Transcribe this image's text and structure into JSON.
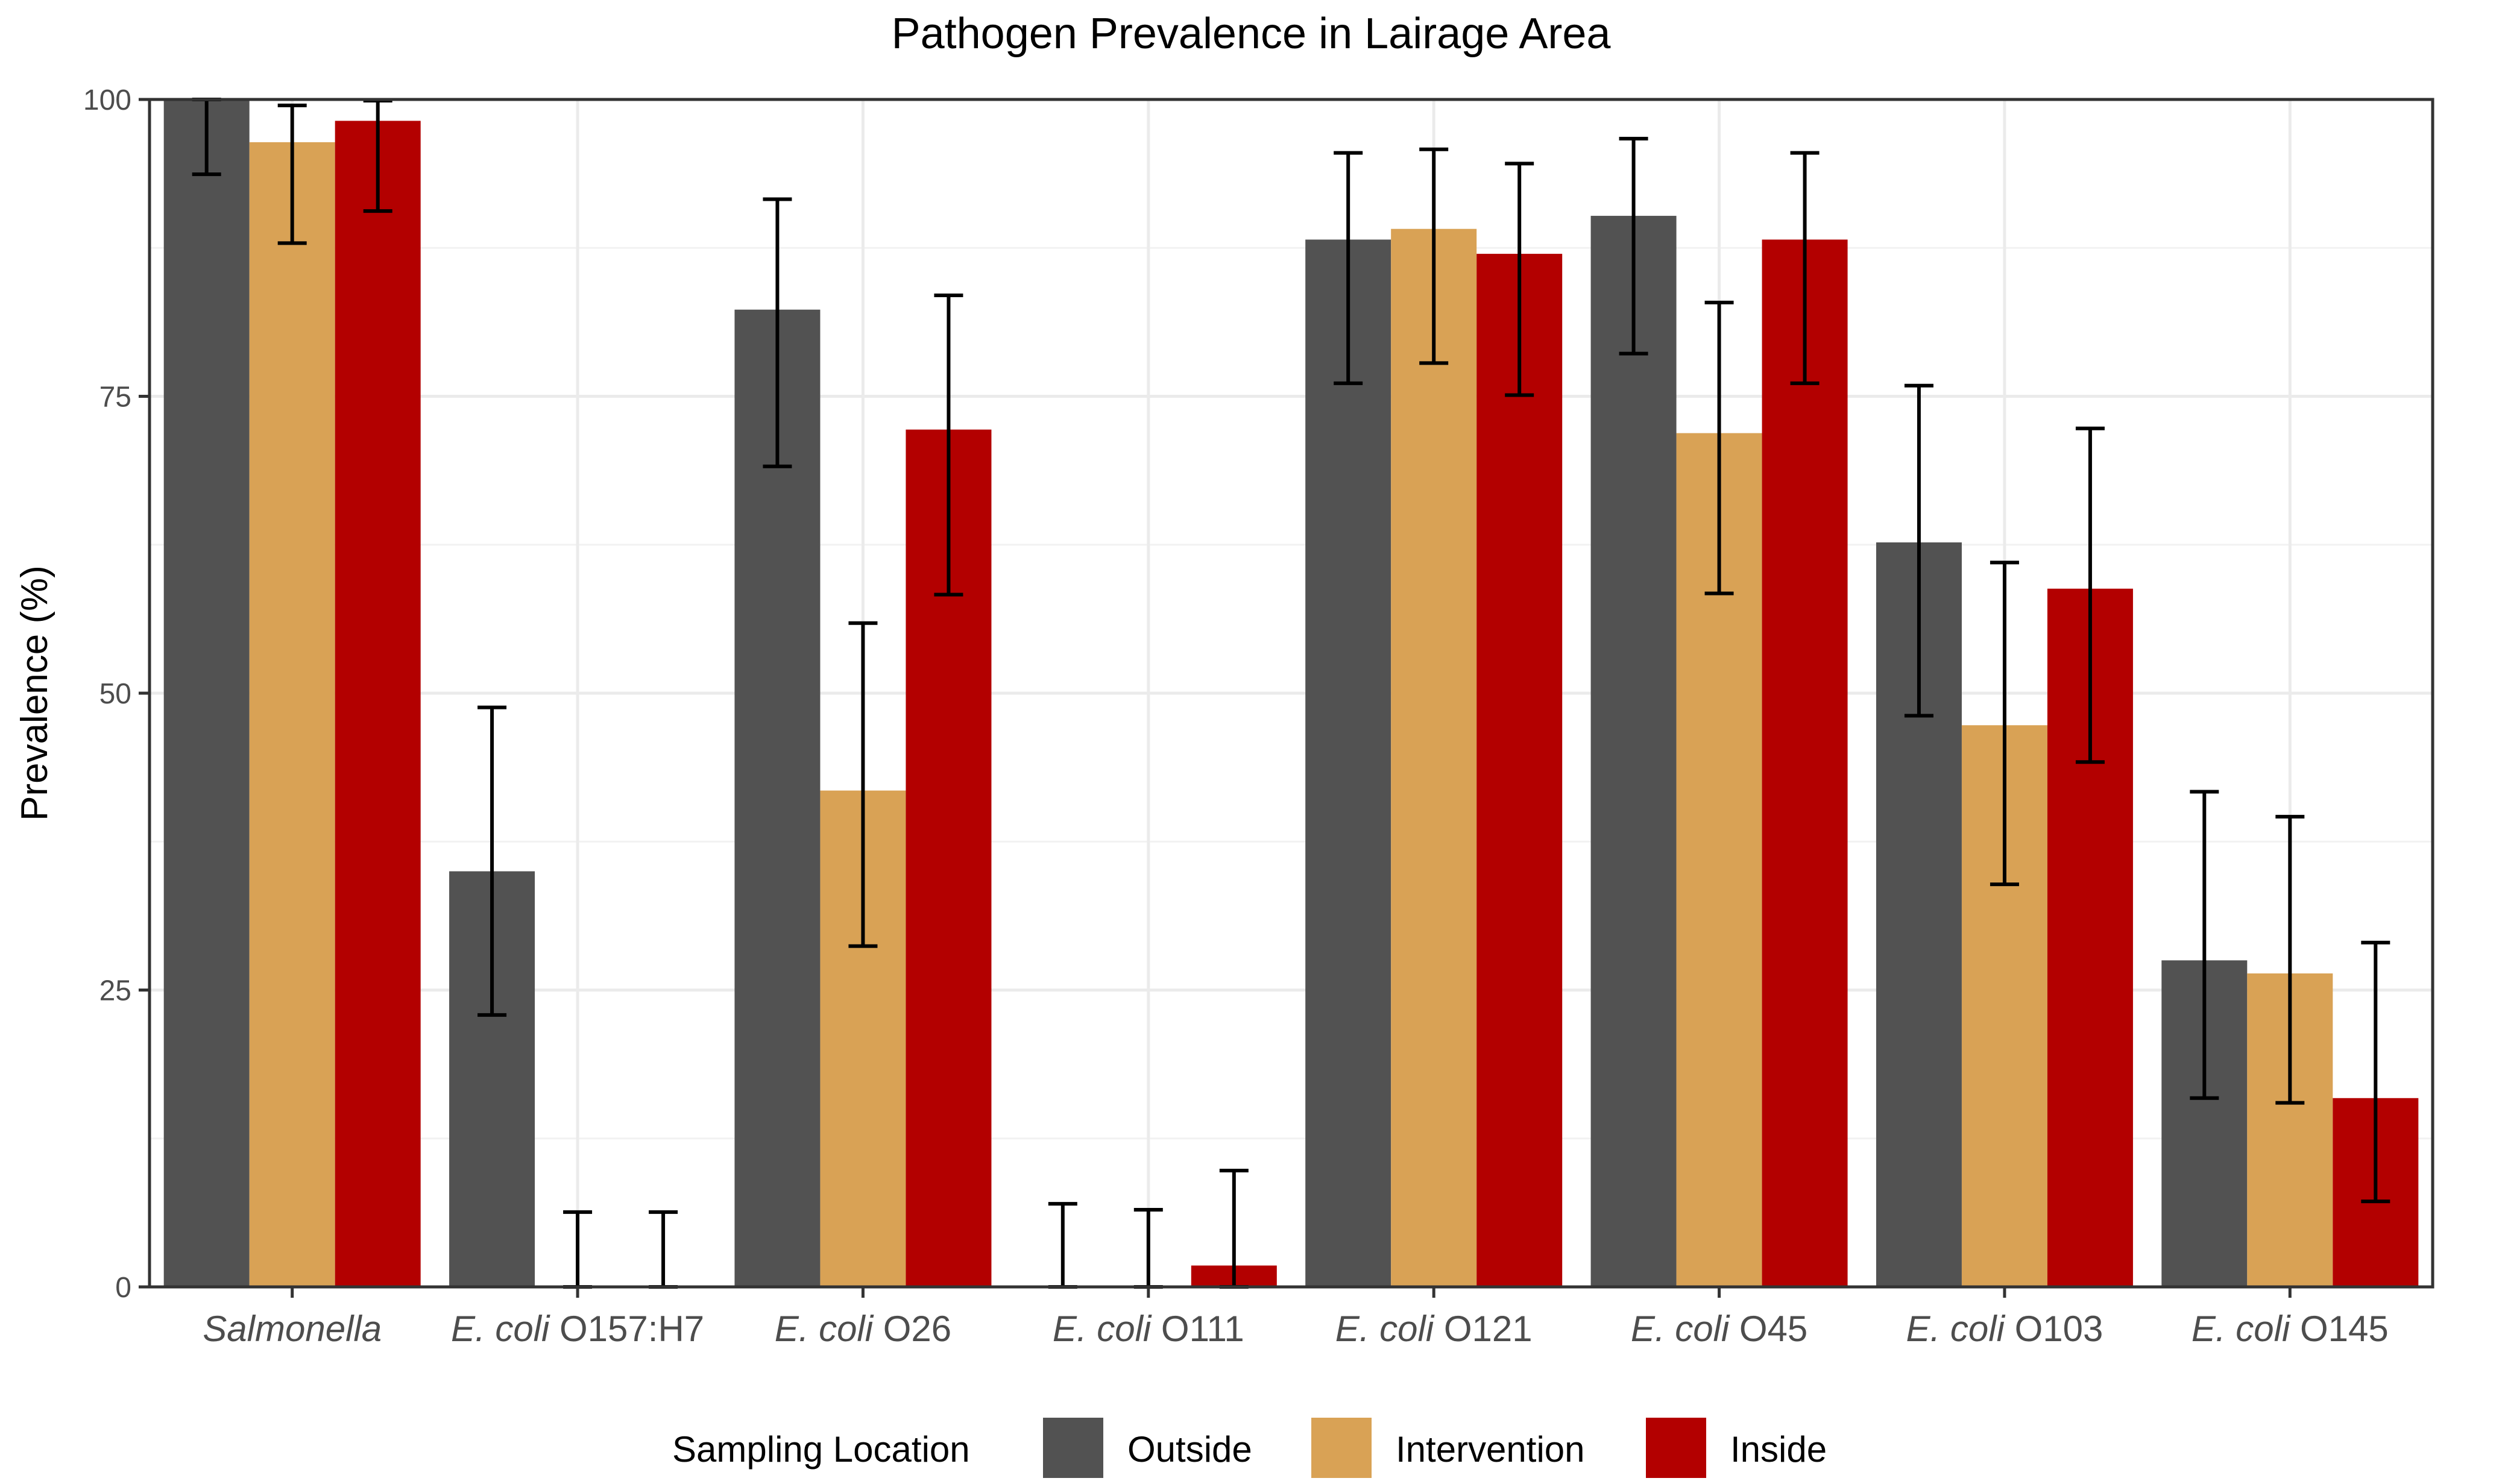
{
  "chart_data": {
    "type": "bar",
    "title": "Pathogen Prevalence in Lairage Area",
    "xlabel": "",
    "ylabel": "Prevalence (%)",
    "ylim": [
      0,
      100
    ],
    "yticks": [
      0,
      25,
      50,
      75,
      100
    ],
    "grid": true,
    "legend_position": "bottom",
    "legend_title": "Sampling Location",
    "categories": [
      {
        "italic": "Salmonella",
        "plain": ""
      },
      {
        "italic": "E. coli",
        "plain": " O157:H7"
      },
      {
        "italic": "E. coli",
        "plain": " O26"
      },
      {
        "italic": "E. coli",
        "plain": " O111"
      },
      {
        "italic": "E. coli",
        "plain": " O121"
      },
      {
        "italic": "E. coli",
        "plain": " O45"
      },
      {
        "italic": "E. coli",
        "plain": " O103"
      },
      {
        "italic": "E. coli",
        "plain": " O145"
      }
    ],
    "series": [
      {
        "name": "Outside",
        "color": "#525252",
        "values": [
          100,
          35,
          82.3,
          0,
          88.2,
          90.2,
          62.7,
          27.5
        ],
        "error_low": [
          93.7,
          22.9,
          69.1,
          0,
          76.1,
          78.6,
          48.1,
          15.9
        ],
        "error_high": [
          100,
          48.8,
          91.6,
          7.0,
          95.5,
          96.7,
          75.9,
          41.7
        ]
      },
      {
        "name": "Intervention",
        "color": "#d9a255",
        "values": [
          96.4,
          0,
          41.8,
          0,
          89.1,
          71.9,
          47.3,
          26.4
        ],
        "error_low": [
          87.9,
          0,
          28.7,
          0,
          77.8,
          58.4,
          33.9,
          15.5
        ],
        "error_high": [
          99.5,
          6.3,
          55.9,
          6.5,
          95.8,
          82.9,
          61.0,
          39.6
        ]
      },
      {
        "name": "Inside",
        "color": "#b30000",
        "values": [
          98.2,
          0,
          72.2,
          1.8,
          87.0,
          88.2,
          58.8,
          15.9
        ],
        "error_low": [
          90.6,
          0,
          58.3,
          0,
          75.1,
          76.1,
          44.2,
          7.2
        ],
        "error_high": [
          99.9,
          6.3,
          83.5,
          9.8,
          94.6,
          95.5,
          72.3,
          29.0
        ]
      }
    ]
  }
}
